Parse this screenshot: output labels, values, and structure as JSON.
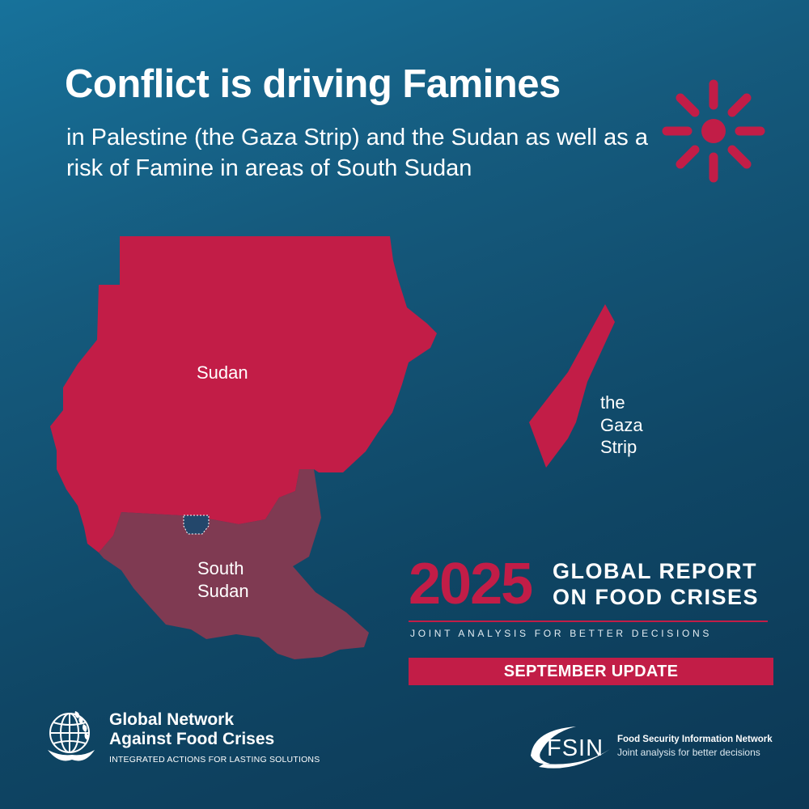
{
  "headline": "Conflict is driving Famines",
  "subheadline": "in Palestine (the Gaza Strip) and the Sudan as well as a risk of Famine in areas of South Sudan",
  "icon": "famine-burst-icon",
  "map": {
    "labels": {
      "sudan": "Sudan",
      "south_sudan": "South Sudan",
      "gaza": "the Gaza Strip"
    },
    "colors": {
      "famine": "#c21d47",
      "risk_of_famine": "#7f3a52",
      "disputed_area": "#23476b"
    }
  },
  "report": {
    "year": "2025",
    "title_line1": "GLOBAL REPORT",
    "title_line2": "ON FOOD CRISES",
    "tagline": "JOINT ANALYSIS FOR BETTER DECISIONS",
    "update_label": "SEPTEMBER UPDATE"
  },
  "partners": {
    "gnafc": {
      "name": "Global Network\nAgainst Food Crises",
      "tagline": "INTEGRATED ACTIONS FOR LASTING SOLUTIONS",
      "logo_icon": "globe-wheat-hands-icon"
    },
    "fsin": {
      "logo_text": "FSIN",
      "name": "Food Security Information Network",
      "tagline": "Joint analysis for better decisions",
      "logo_icon": "fsin-swoosh-icon"
    }
  }
}
